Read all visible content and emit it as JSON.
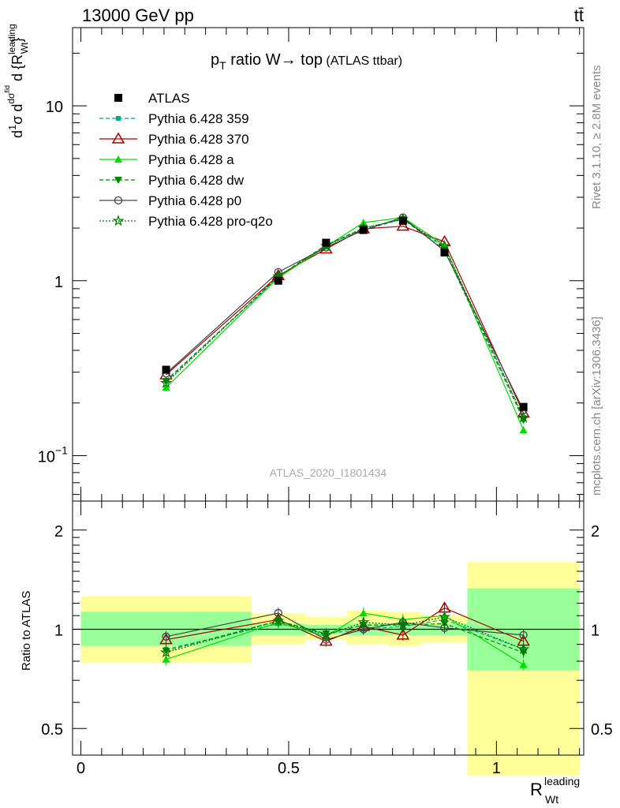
{
  "header": {
    "energy": "13000 GeV pp",
    "process": "tt̄"
  },
  "title": {
    "main": "p",
    "sub": "T",
    "rest": " ratio W",
    "arrow": "→",
    "target": " top",
    "tag": " (ATLAS ttbar)"
  },
  "side_labels": {
    "rivet": "Rivet 3.1.10, ≥ 2.8M events",
    "mcplots": "mcplots.cern.ch [arXiv:1306.3436]"
  },
  "analysis": "ATLAS_2020_I1801434",
  "y_label_main": "d σ / d R",
  "y_label_ratio": "Ratio to ATLAS",
  "x_label": {
    "base": "R",
    "sup": "leading",
    "sub": "Wt"
  },
  "colors": {
    "ATLAS": "#000000",
    "p359": "#00aa88",
    "p370": "#aa0000",
    "pa": "#00dd00",
    "pdw": "#008800",
    "pp0": "#444444",
    "pq2o": "#007700",
    "band_inner": "#99ff99",
    "band_outer": "#ffff99"
  },
  "chart_data": [
    {
      "type": "scatter",
      "y_scale": "log",
      "xlim": [
        -0.02,
        1.21
      ],
      "ylim": [
        0.055,
        28
      ],
      "y_ticks": [
        "10^-1",
        "1",
        "10"
      ],
      "legend": "top-left",
      "series": [
        {
          "name": "ATLAS",
          "x": [
            0.205,
            0.475,
            0.59,
            0.68,
            0.775,
            0.875,
            1.065
          ],
          "y": [
            0.31,
            1.0,
            1.65,
            1.95,
            2.2,
            1.45,
            0.19
          ]
        },
        {
          "name": "Pythia 6.428 359",
          "x": [
            0.205,
            0.475,
            0.59,
            0.68,
            0.775,
            0.875,
            1.065
          ],
          "y": [
            0.27,
            1.04,
            1.6,
            1.95,
            2.25,
            1.55,
            0.165
          ]
        },
        {
          "name": "Pythia 6.428 370",
          "x": [
            0.205,
            0.475,
            0.59,
            0.68,
            0.775,
            0.875,
            1.065
          ],
          "y": [
            0.29,
            1.07,
            1.52,
            1.98,
            2.05,
            1.67,
            0.175
          ]
        },
        {
          "name": "Pythia 6.428 a",
          "x": [
            0.205,
            0.475,
            0.59,
            0.68,
            0.775,
            0.875,
            1.065
          ],
          "y": [
            0.245,
            1.04,
            1.57,
            2.15,
            2.3,
            1.6,
            0.14
          ]
        },
        {
          "name": "Pythia 6.428 dw",
          "x": [
            0.205,
            0.475,
            0.59,
            0.68,
            0.775,
            0.875,
            1.065
          ],
          "y": [
            0.265,
            1.06,
            1.6,
            2.0,
            2.25,
            1.5,
            0.16
          ]
        },
        {
          "name": "Pythia 6.428 p0",
          "x": [
            0.205,
            0.475,
            0.59,
            0.68,
            0.775,
            0.875,
            1.065
          ],
          "y": [
            0.295,
            1.12,
            1.55,
            1.95,
            2.3,
            1.48,
            0.182
          ]
        },
        {
          "name": "Pythia 6.428 pro-q2o",
          "x": [
            0.205,
            0.475,
            0.59,
            0.68,
            0.775,
            0.875,
            1.065
          ],
          "y": [
            0.26,
            1.06,
            1.58,
            2.0,
            2.25,
            1.58,
            0.165
          ]
        }
      ]
    },
    {
      "type": "line",
      "xlabel": "R_Wt^leading",
      "ylabel": "Ratio to ATLAS",
      "xlim": [
        -0.02,
        1.21
      ],
      "ylim": [
        0.415,
        2.45
      ],
      "x_ticks": [
        0,
        0.5,
        1
      ],
      "y_ticks": [
        0.5,
        1,
        2
      ],
      "bins": [
        [
          0.0,
          0.41
        ],
        [
          0.41,
          0.54
        ],
        [
          0.54,
          0.64
        ],
        [
          0.64,
          0.74
        ],
        [
          0.74,
          0.82
        ],
        [
          0.82,
          0.93
        ],
        [
          0.93,
          1.2
        ]
      ],
      "band_inner": [
        [
          0.89,
          1.13
        ],
        [
          0.96,
          1.04
        ],
        [
          0.97,
          1.03
        ],
        [
          0.96,
          1.04
        ],
        [
          0.96,
          1.04
        ],
        [
          0.96,
          1.04
        ],
        [
          0.75,
          1.33
        ]
      ],
      "band_outer": [
        [
          0.79,
          1.26
        ],
        [
          0.9,
          1.12
        ],
        [
          0.93,
          1.09
        ],
        [
          0.9,
          1.14
        ],
        [
          0.89,
          1.13
        ],
        [
          0.91,
          1.1
        ],
        [
          0.36,
          1.6
        ]
      ],
      "series": [
        {
          "name": "Pythia 6.428 359",
          "y": [
            0.87,
            1.04,
            0.97,
            1.0,
            1.02,
            1.07,
            0.87
          ]
        },
        {
          "name": "Pythia 6.428 370",
          "y": [
            0.93,
            1.07,
            0.92,
            1.02,
            0.96,
            1.16,
            0.92
          ]
        },
        {
          "name": "Pythia 6.428 a",
          "y": [
            0.81,
            1.05,
            0.95,
            1.12,
            1.07,
            1.1,
            0.78
          ]
        },
        {
          "name": "Pythia 6.428 dw",
          "y": [
            0.86,
            1.06,
            0.97,
            1.03,
            1.03,
            1.04,
            0.85
          ]
        },
        {
          "name": "Pythia 6.428 p0",
          "y": [
            0.95,
            1.12,
            0.93,
            1.0,
            1.05,
            1.01,
            0.96
          ]
        },
        {
          "name": "Pythia 6.428 pro-q2o",
          "y": [
            0.85,
            1.06,
            0.96,
            1.05,
            1.03,
            1.09,
            0.87
          ]
        }
      ]
    }
  ]
}
